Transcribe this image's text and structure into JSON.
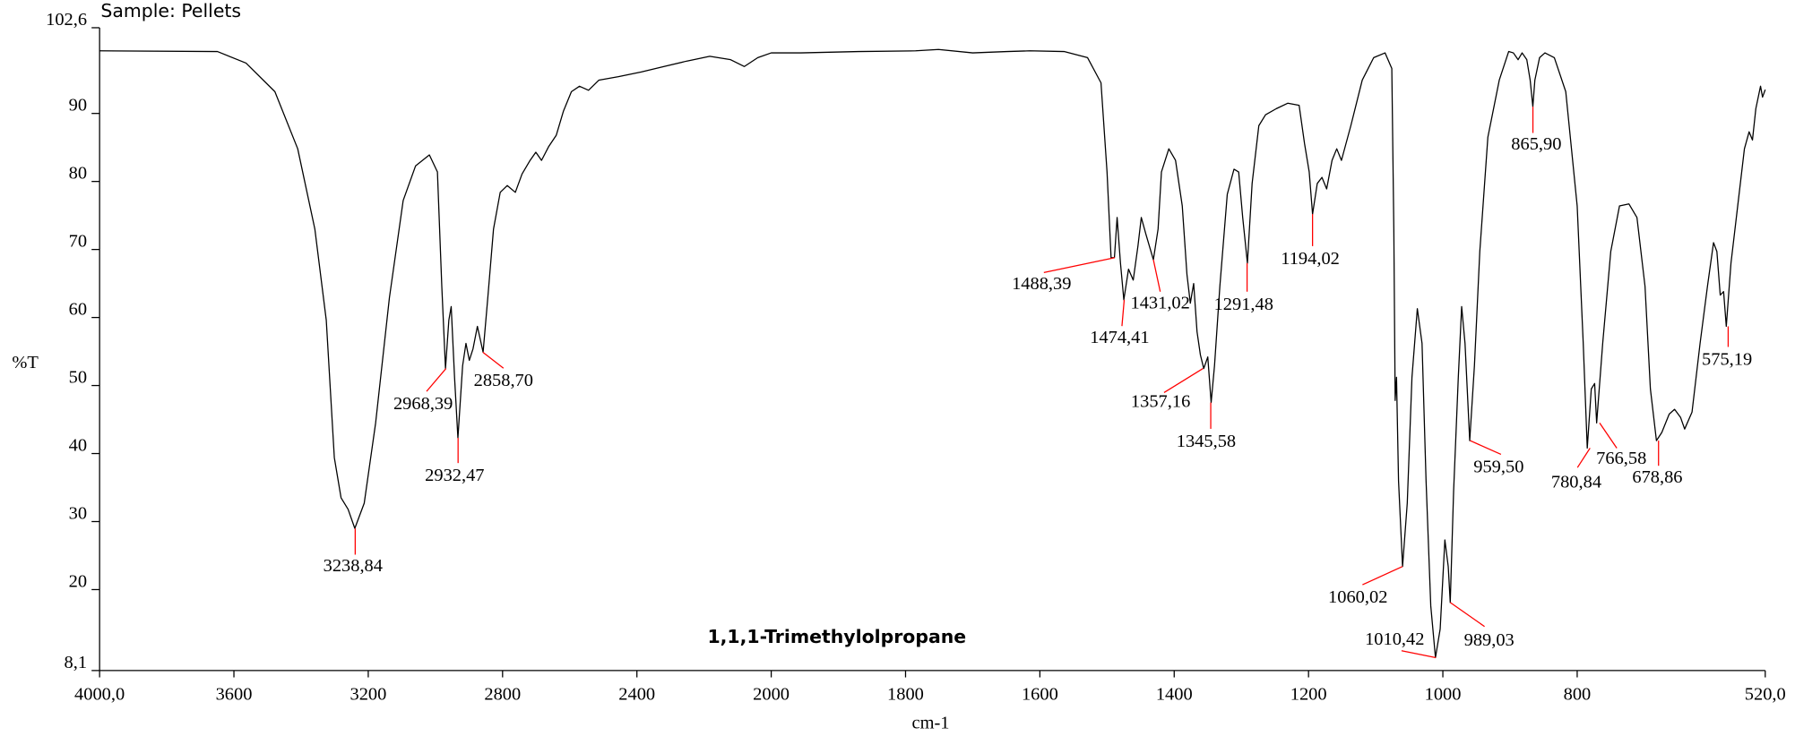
{
  "chart_data": {
    "type": "line",
    "title": "1,1,1-Trimethylolpropane",
    "subtitle": "Sample: Pellets",
    "xlabel": "cm-1",
    "ylabel": "%T",
    "color": "#000000",
    "peak_color": "#ff0000",
    "xlim": [
      4000,
      520
    ],
    "ylim": [
      8.1,
      102.6
    ],
    "x_scale": {
      "break": 2000,
      "factor": 2
    },
    "xticks": [
      {
        "value": 4000,
        "label": "4000,0"
      },
      3600,
      3200,
      2800,
      2400,
      2000,
      1800,
      1600,
      1400,
      1200,
      1000,
      800,
      {
        "value": 520,
        "label": "520,0"
      }
    ],
    "yticks": [
      {
        "value": 8.1,
        "label": "8,1"
      },
      20,
      30,
      40,
      50,
      60,
      70,
      80,
      90,
      {
        "value": 102.6,
        "label": "102,6"
      }
    ],
    "x": [
      4000,
      3649,
      3564,
      3478,
      3410,
      3359,
      3325,
      3301,
      3281,
      3260,
      3240,
      3212,
      3178,
      3137,
      3096,
      3059,
      3018,
      2994,
      2981,
      2970,
      2960,
      2953,
      2943,
      2933,
      2919,
      2909,
      2899,
      2888,
      2875,
      2858,
      2844,
      2827,
      2807,
      2786,
      2762,
      2742,
      2718,
      2701,
      2684,
      2663,
      2640,
      2619,
      2595,
      2571,
      2544,
      2513,
      2455,
      2387,
      2319,
      2251,
      2183,
      2121,
      2080,
      2040,
      2000,
      1956,
      1870,
      1785,
      1751,
      1700,
      1649,
      1615,
      1564,
      1529,
      1509,
      1500,
      1494,
      1489,
      1485,
      1480,
      1475,
      1468,
      1461,
      1454,
      1449,
      1442,
      1431,
      1424,
      1419,
      1408,
      1398,
      1388,
      1381,
      1376,
      1371,
      1366,
      1361,
      1356,
      1350,
      1345,
      1340,
      1332,
      1321,
      1311,
      1304,
      1298,
      1291,
      1284,
      1274,
      1264,
      1248,
      1231,
      1214,
      1206,
      1199,
      1194,
      1187,
      1180,
      1173,
      1165,
      1158,
      1151,
      1137,
      1120,
      1103,
      1086,
      1076,
      1073,
      1071,
      1069,
      1066,
      1060,
      1053,
      1046,
      1038,
      1031,
      1025,
      1018,
      1011,
      1004,
      997,
      992,
      989,
      984,
      977,
      972,
      967,
      960,
      953,
      945,
      933,
      916,
      902,
      895,
      888,
      882,
      875,
      870,
      866,
      863,
      856,
      848,
      834,
      817,
      800,
      791,
      785,
      779,
      774,
      771,
      762,
      750,
      737,
      723,
      711,
      699,
      691,
      682,
      674,
      663,
      655,
      646,
      640,
      629,
      617,
      606,
      597,
      592,
      587,
      582,
      578,
      571,
      561,
      551,
      544,
      539,
      534,
      527,
      524,
      520
    ],
    "values": [
      99.2,
      99.1,
      97.4,
      93.2,
      84.8,
      73.0,
      59.6,
      39.4,
      33.5,
      31.8,
      29.0,
      32.7,
      44.5,
      62.9,
      77.2,
      82.3,
      83.9,
      81.4,
      64.6,
      52.5,
      59.6,
      61.6,
      51.2,
      42.3,
      52.9,
      56.2,
      53.7,
      55.4,
      58.7,
      54.9,
      62.9,
      73.0,
      78.4,
      79.4,
      78.4,
      81.1,
      83.1,
      84.3,
      83.1,
      85.1,
      86.8,
      90.3,
      93.2,
      94.0,
      93.4,
      94.9,
      95.4,
      96.1,
      96.9,
      97.7,
      98.4,
      97.9,
      96.9,
      98.2,
      98.9,
      98.9,
      99.1,
      99.2,
      99.4,
      98.9,
      99.1,
      99.2,
      99.1,
      98.2,
      94.5,
      81.4,
      68.8,
      68.8,
      74.7,
      68.0,
      62.6,
      67.1,
      65.5,
      70.5,
      74.7,
      72.2,
      68.5,
      73.0,
      81.4,
      84.8,
      83.1,
      76.4,
      66.3,
      62.1,
      65.0,
      57.9,
      54.5,
      52.5,
      54.2,
      47.5,
      52.9,
      64.6,
      78.1,
      81.8,
      81.4,
      74.7,
      68.0,
      79.7,
      88.2,
      89.8,
      90.7,
      91.5,
      91.2,
      85.6,
      81.4,
      75.2,
      79.7,
      80.6,
      78.9,
      83.1,
      84.8,
      83.1,
      88.2,
      94.9,
      98.2,
      98.9,
      96.6,
      73.0,
      47.8,
      51.2,
      36.0,
      23.4,
      32.7,
      51.2,
      61.3,
      56.2,
      36.0,
      17.6,
      10.0,
      14.2,
      27.3,
      23.4,
      18.1,
      34.4,
      51.2,
      61.6,
      56.2,
      41.9,
      52.9,
      69.7,
      86.5,
      94.9,
      99.1,
      98.9,
      97.9,
      98.9,
      97.9,
      94.9,
      91.0,
      94.9,
      98.2,
      98.9,
      98.2,
      93.2,
      76.4,
      56.2,
      40.8,
      49.5,
      50.3,
      44.5,
      56.2,
      69.7,
      76.4,
      76.7,
      74.7,
      64.6,
      49.5,
      41.9,
      43.1,
      45.8,
      46.5,
      45.3,
      43.6,
      46.1,
      56.2,
      64.6,
      71.0,
      69.7,
      63.3,
      63.8,
      58.7,
      68.0,
      76.4,
      84.8,
      87.3,
      86.1,
      90.7,
      94.0,
      92.4,
      93.5
    ],
    "peaks": [
      {
        "x": 3238.84,
        "y": 29.0,
        "label": "3238,84"
      },
      {
        "x": 2968.39,
        "y": 52.5,
        "label": "2968,39"
      },
      {
        "x": 2932.47,
        "y": 42.3,
        "label": "2932,47"
      },
      {
        "x": 2858.7,
        "y": 54.9,
        "label": "2858,70"
      },
      {
        "x": 1488.39,
        "y": 68.8,
        "label": "1488,39"
      },
      {
        "x": 1474.41,
        "y": 62.6,
        "label": "1474,41"
      },
      {
        "x": 1431.02,
        "y": 68.5,
        "label": "1431,02"
      },
      {
        "x": 1357.16,
        "y": 52.5,
        "label": "1357,16"
      },
      {
        "x": 1345.58,
        "y": 47.5,
        "label": "1345,58"
      },
      {
        "x": 1291.48,
        "y": 68.0,
        "label": "1291,48"
      },
      {
        "x": 1194.02,
        "y": 75.2,
        "label": "1194,02"
      },
      {
        "x": 1060.02,
        "y": 23.4,
        "label": "1060,02"
      },
      {
        "x": 1010.42,
        "y": 10.0,
        "label": "1010,42"
      },
      {
        "x": 989.03,
        "y": 18.1,
        "label": "989,03"
      },
      {
        "x": 959.5,
        "y": 41.9,
        "label": "959,50"
      },
      {
        "x": 865.9,
        "y": 91.0,
        "label": "865,90"
      },
      {
        "x": 780.84,
        "y": 40.8,
        "label": "780,84"
      },
      {
        "x": 766.58,
        "y": 44.5,
        "label": "766,58"
      },
      {
        "x": 678.86,
        "y": 41.9,
        "label": "678,86"
      },
      {
        "x": 575.19,
        "y": 58.7,
        "label": "575,19"
      }
    ]
  }
}
